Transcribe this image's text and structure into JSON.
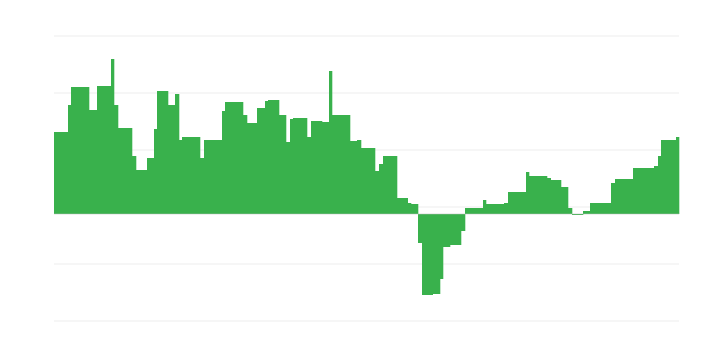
{
  "chart_data": {
    "type": "bar",
    "title": "",
    "xlabel": "",
    "ylabel": "",
    "ylim": [
      -120,
      200
    ],
    "gridlines": [
      200,
      136,
      72,
      8,
      -56,
      -120
    ],
    "grid": true,
    "legend": "none",
    "colors": {
      "bar": "#39b14c",
      "grid": "#eeeeee",
      "baseline": "#bbbbbb"
    },
    "values": [
      92,
      92,
      92,
      92,
      122,
      142,
      142,
      142,
      142,
      142,
      117,
      117,
      144,
      144,
      144,
      144,
      174,
      122,
      97,
      97,
      97,
      97,
      65,
      50,
      50,
      50,
      63,
      63,
      95,
      138,
      138,
      138,
      122,
      122,
      135,
      83,
      86,
      86,
      86,
      86,
      86,
      63,
      83,
      83,
      83,
      83,
      83,
      116,
      126,
      126,
      126,
      126,
      126,
      111,
      102,
      102,
      102,
      119,
      119,
      127,
      128,
      128,
      128,
      111,
      111,
      81,
      107,
      108,
      108,
      108,
      108,
      86,
      104,
      104,
      104,
      103,
      103,
      160,
      111,
      111,
      111,
      111,
      111,
      82,
      82,
      83,
      74,
      74,
      74,
      74,
      48,
      56,
      65,
      65,
      65,
      65,
      18,
      18,
      18,
      13,
      11,
      11,
      -32,
      -90,
      -90,
      -90,
      -89,
      -89,
      -73,
      -37,
      -37,
      -35,
      -35,
      -35,
      -19,
      7,
      7,
      7,
      7,
      7,
      16,
      11,
      11,
      11,
      11,
      11,
      13,
      25,
      25,
      25,
      25,
      25,
      47,
      43,
      43,
      43,
      43,
      43,
      41,
      38,
      38,
      38,
      31,
      31,
      7,
      -1,
      -1,
      -1,
      4,
      4,
      13,
      13,
      13,
      13,
      13,
      13,
      35,
      40,
      40,
      40,
      40,
      40,
      52,
      52,
      52,
      52,
      52,
      52,
      54,
      65,
      83,
      83,
      83,
      83,
      86
    ]
  }
}
